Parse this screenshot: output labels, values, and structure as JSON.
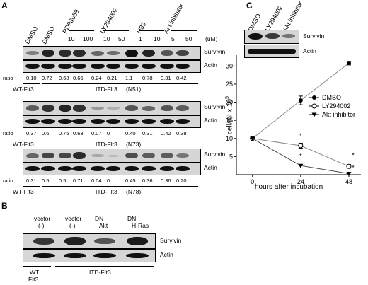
{
  "panel_a": {
    "letter": "A",
    "headers": {
      "dmso_wt": "DMSO",
      "dmso_itd": "DMSO",
      "pd98059": "PD98059",
      "ly294002": "LY294002",
      "h89": "H89",
      "akt_inhibitor": "Akt inhibitor",
      "conc": [
        "10",
        "100",
        "10",
        "50",
        "1",
        "10",
        "5",
        "50"
      ],
      "unit": "(uM)"
    },
    "blot1": {
      "survivin": "Survivin",
      "actin": "Actin",
      "ratio_label": "ratio",
      "ratios": [
        "0.10",
        "0.72",
        "0.68",
        "0.66",
        "0.24",
        "0.21",
        "1.1",
        "0.78",
        "0.31",
        "0.42"
      ],
      "wt": "WT-Flt3",
      "itd": "ITD-Flt3",
      "sample": "(N51)",
      "survivin_intensity": [
        0.35,
        0.9,
        0.85,
        0.85,
        0.5,
        0.45,
        1.0,
        0.9,
        0.6,
        0.7
      ]
    },
    "blot2": {
      "survivin": "Survivin",
      "actin": "Actin",
      "ratio_label": "ratio",
      "ratios": [
        "0.37",
        "0.6",
        "0.75",
        "0.63",
        "0.07",
        "0",
        "0.40",
        "0.31",
        "0.42",
        "0.38"
      ],
      "wt": "WT-Flt3",
      "itd": "ITD-Flt3",
      "sample": "(N73)",
      "survivin_intensity": [
        0.55,
        0.8,
        0.9,
        0.8,
        0.2,
        0.05,
        0.6,
        0.5,
        0.6,
        0.55
      ]
    },
    "blot3": {
      "survivin": "Survivin",
      "actin": "Actin",
      "ratio_label": "ratio",
      "ratios": [
        "0.31",
        "0.5",
        "0.5",
        "0.71",
        "0.04",
        "0",
        "0.45",
        "0.36",
        "0.36",
        "0.20"
      ],
      "wt": "WT-Flt3",
      "itd": "ITD-Flt3",
      "sample": "(N78)",
      "survivin_intensity": [
        0.5,
        0.7,
        0.7,
        0.85,
        0.1,
        0.0,
        0.65,
        0.55,
        0.55,
        0.4
      ]
    }
  },
  "panel_b": {
    "letter": "B",
    "lanes": [
      {
        "l1": "vector",
        "l2": "(-)"
      },
      {
        "l1": "vector",
        "l2": "(-)"
      },
      {
        "l1": "DN",
        "l2": "Akt"
      },
      {
        "l1": "DN",
        "l2": "H-Ras"
      }
    ],
    "survivin": "Survivin",
    "actin": "Actin",
    "wt_l1": "WT",
    "wt_l2": "Flt3",
    "itd": "ITD-Flt3",
    "survivin_intensity": [
      0.75,
      0.9,
      0.55,
      0.95
    ]
  },
  "panel_c": {
    "letter": "C",
    "inset_labels": [
      "DMSO",
      "LY294002",
      "Akt inhibitor"
    ],
    "inset_survivin": "Survivin",
    "inset_actin": "Actin",
    "ylabel": "cell/ml x 10",
    "ylabel_sup": "5",
    "xlabel": "hours after incubation",
    "legend": [
      "DMSO",
      "LY294002",
      "Akt inhibitor"
    ],
    "asterisk": "*"
  },
  "chart_data": {
    "type": "line",
    "xlabel": "hours after incubation",
    "ylabel": "cell/ml x 10^5",
    "x": [
      0,
      24,
      48
    ],
    "xticks": [
      "0",
      "24",
      "48"
    ],
    "yticks": [
      "5",
      "10",
      "15",
      "20",
      "25",
      "30"
    ],
    "xlim": [
      -8,
      54
    ],
    "ylim": [
      0,
      33
    ],
    "legend_position": "right",
    "series": [
      {
        "name": "DMSO",
        "values": [
          10,
          20.5,
          30.8
        ],
        "err": [
          0,
          1.2,
          0.5
        ],
        "marker": "filled-circle"
      },
      {
        "name": "LY294002",
        "values": [
          10,
          8.0,
          2.3
        ],
        "err": [
          0,
          0.7,
          0.5
        ],
        "marker": "open-circle"
      },
      {
        "name": "Akt inhibitor",
        "values": [
          10,
          2.5,
          0.3
        ],
        "err": [
          0,
          0,
          0
        ],
        "marker": "filled-triangle"
      }
    ]
  }
}
